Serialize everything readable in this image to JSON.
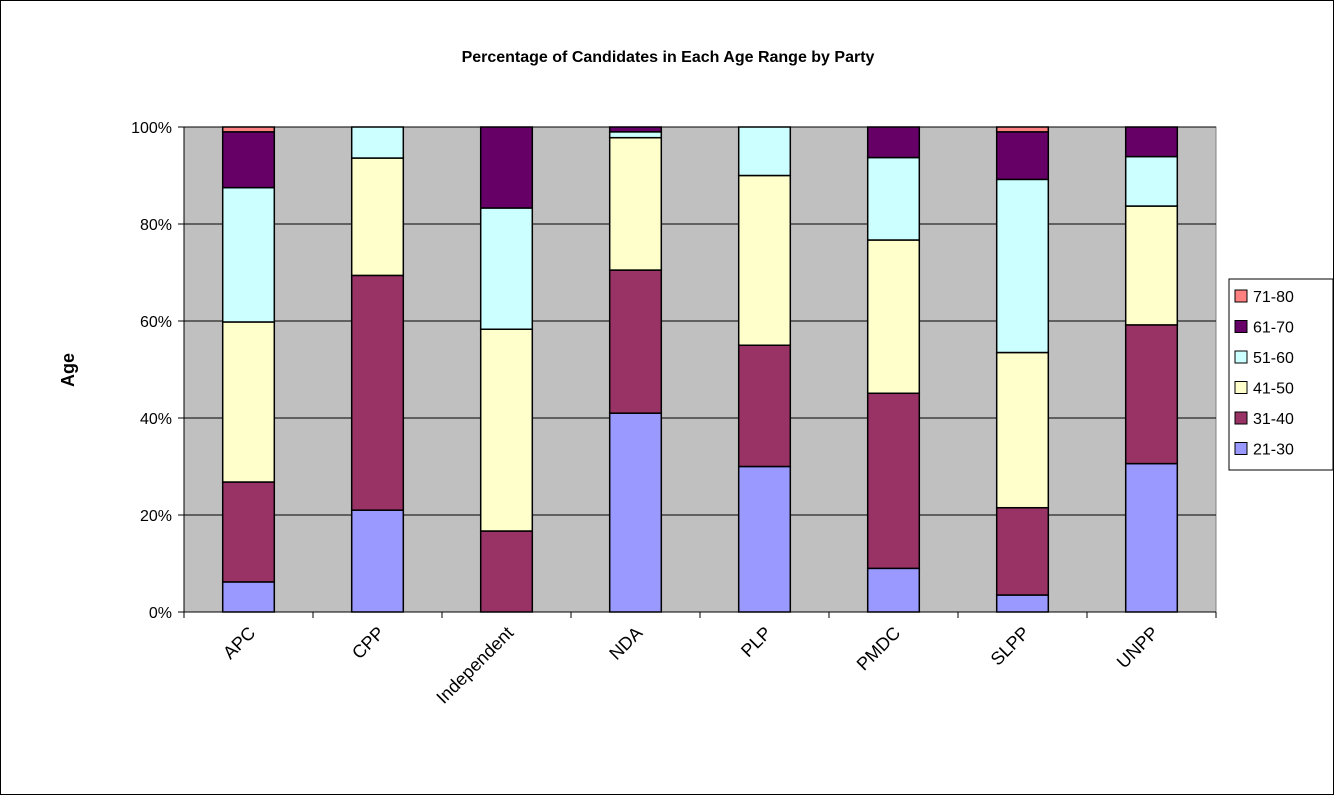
{
  "chart_data": {
    "type": "bar",
    "stacked": true,
    "normalized": true,
    "title": "Percentage of Candidates in Each Age Range by Party",
    "xlabel": "",
    "ylabel": "Age",
    "ylim": [
      0,
      100
    ],
    "yticks": [
      "0%",
      "20%",
      "40%",
      "60%",
      "80%",
      "100%"
    ],
    "categories": [
      "APC",
      "CPP",
      "Independent",
      "NDA",
      "PLP",
      "PMDC",
      "SLPP",
      "UNPP"
    ],
    "grid": true,
    "legend_position": "right",
    "series": [
      {
        "name": "21-30",
        "color": "#9999ff",
        "values": [
          6.2,
          21.0,
          0.0,
          41.0,
          30.0,
          9.0,
          3.5,
          30.6
        ]
      },
      {
        "name": "31-40",
        "color": "#993366",
        "values": [
          20.6,
          48.4,
          16.7,
          29.5,
          25.0,
          36.1,
          18.0,
          28.6
        ]
      },
      {
        "name": "41-50",
        "color": "#ffffcc",
        "values": [
          33.0,
          24.2,
          41.6,
          27.3,
          35.0,
          31.6,
          32.0,
          24.5
        ]
      },
      {
        "name": "51-60",
        "color": "#ccffff",
        "values": [
          27.7,
          6.4,
          25.0,
          1.2,
          10.0,
          17.0,
          35.7,
          10.2
        ]
      },
      {
        "name": "61-70",
        "color": "#660066",
        "values": [
          11.5,
          0.0,
          16.7,
          1.0,
          0.0,
          6.3,
          9.8,
          6.1
        ]
      },
      {
        "name": "71-80",
        "color": "#ff8080",
        "values": [
          1.0,
          0.0,
          0.0,
          0.0,
          0.0,
          0.0,
          1.0,
          0.0
        ]
      }
    ]
  }
}
